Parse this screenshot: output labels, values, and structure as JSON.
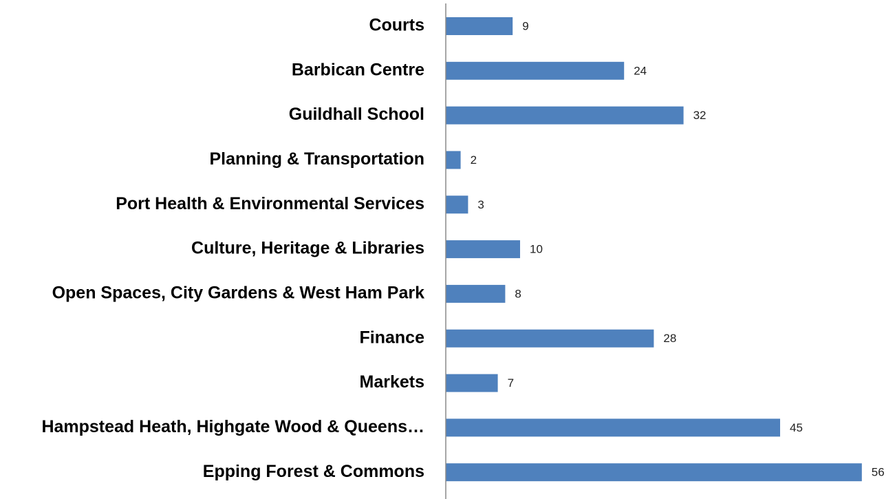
{
  "chart_data": {
    "type": "bar",
    "orientation": "horizontal",
    "categories": [
      "Courts",
      "Barbican Centre",
      "Guildhall School",
      "Planning & Transportation",
      "Port Health & Environmental Services",
      "Culture, Heritage & Libraries",
      "Open Spaces, City Gardens & West Ham Park",
      "Finance",
      "Markets",
      "Hampstead Heath, Highgate Wood & Queens…",
      "Epping Forest & Commons"
    ],
    "values": [
      9,
      24,
      32,
      2,
      3,
      10,
      8,
      28,
      7,
      45,
      56
    ],
    "color": "#4f81bd",
    "xlim": [
      0,
      60
    ]
  }
}
